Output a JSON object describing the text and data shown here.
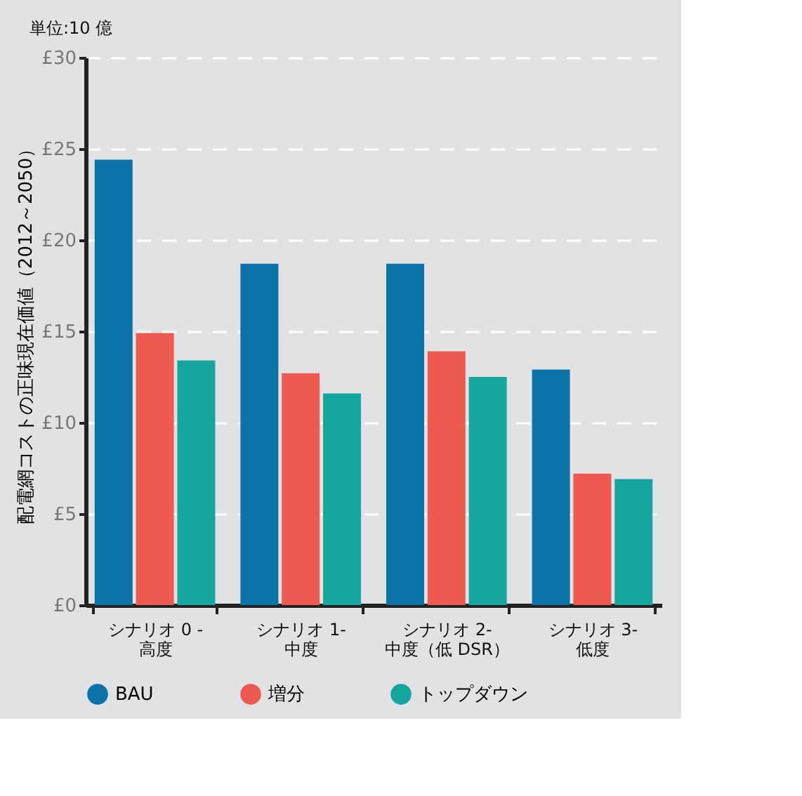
{
  "chart_data": {
    "type": "bar",
    "ylabel": "配電網コストの正味現在価値（2012～2050）",
    "annotations": [
      "単位:10 億"
    ],
    "categories": [
      "シナリオ 0 -\n高度",
      "シナリオ 1-\n中度",
      "シナリオ 2-\n中度（低 DSR）",
      "シナリオ 3-\n低度"
    ],
    "series": [
      {
        "name": "BAU",
        "color": "#0a74a8",
        "values": [
          24.4,
          18.7,
          18.7,
          12.9
        ]
      },
      {
        "name": "増分",
        "color": "#ee5a4f",
        "values": [
          14.9,
          12.7,
          13.9,
          7.2
        ]
      },
      {
        "name": "トップダウン",
        "color": "#17a59f",
        "values": [
          13.4,
          11.6,
          12.5,
          6.9
        ]
      }
    ],
    "ylim": [
      0,
      30
    ],
    "yticks": [
      {
        "value": 0,
        "label": "£0"
      },
      {
        "value": 5,
        "label": "£5"
      },
      {
        "value": 10,
        "label": "£10"
      },
      {
        "value": 15,
        "label": "£15"
      },
      {
        "value": 20,
        "label": "£20"
      },
      {
        "value": 25,
        "label": "£25"
      },
      {
        "value": 30,
        "label": "£30"
      }
    ],
    "grid": "y",
    "legend": "bottom"
  }
}
